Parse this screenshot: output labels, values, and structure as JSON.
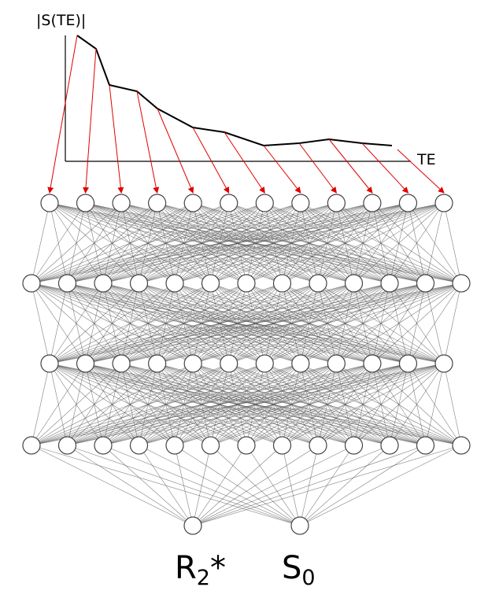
{
  "plot": {
    "y_axis_label": "|S(TE)|",
    "x_axis_label": "TE"
  },
  "outputs": [
    {
      "symbol": "R",
      "subscript": "2",
      "suffix": "*"
    },
    {
      "symbol": "S",
      "subscript": "0"
    }
  ]
}
